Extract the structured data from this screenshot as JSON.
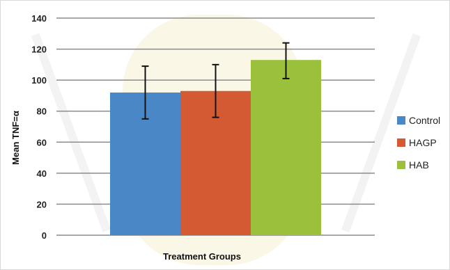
{
  "chart_data": {
    "type": "bar",
    "categories": [
      "Control",
      "HAGP",
      "HAB"
    ],
    "series": [
      {
        "name": "Control",
        "value": 92,
        "err_low": 75,
        "err_high": 109,
        "color": "#4a87c6"
      },
      {
        "name": "HAGP",
        "value": 93,
        "err_low": 76,
        "err_high": 110,
        "color": "#d35a33"
      },
      {
        "name": "HAB",
        "value": 113,
        "err_low": 101,
        "err_high": 124,
        "color": "#9bc13c"
      }
    ],
    "ylim": [
      0,
      140
    ],
    "yticks": [
      0,
      20,
      40,
      60,
      80,
      100,
      120,
      140
    ],
    "ylabel": "Mean TNF=α",
    "xlabel": "Treatment Groups",
    "grid": true,
    "legend_position": "right"
  },
  "colors": {
    "gridline": "#8c8c8c",
    "error_bar": "#111111"
  }
}
